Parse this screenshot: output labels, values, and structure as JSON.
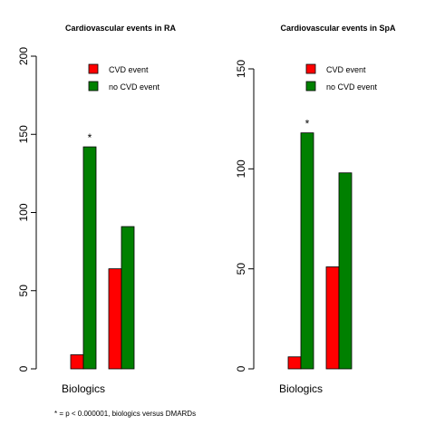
{
  "chart_data": [
    {
      "type": "bar",
      "title": "Cardiovascular events in RA",
      "categories": [
        "Biologics",
        ""
      ],
      "series": [
        {
          "name": "CVD event",
          "color": "#ff0000",
          "values": [
            9,
            64
          ]
        },
        {
          "name": "no CVD event",
          "color": "#008000",
          "values": [
            142,
            91
          ]
        }
      ],
      "annotations": [
        {
          "text": "*",
          "category": 0,
          "series": 1
        }
      ],
      "ylim": [
        0,
        200
      ],
      "yticks": [
        0,
        50,
        100,
        150,
        200
      ],
      "legend": "top-right",
      "grid": false
    },
    {
      "type": "bar",
      "title": "Cardiovascular events in SpA",
      "categories": [
        "Biologics",
        ""
      ],
      "series": [
        {
          "name": "CVD event",
          "color": "#ff0000",
          "values": [
            6,
            51
          ]
        },
        {
          "name": "no CVD event",
          "color": "#008000",
          "values": [
            118,
            98
          ]
        }
      ],
      "annotations": [
        {
          "text": "*",
          "category": 0,
          "series": 1
        }
      ],
      "ylim": [
        0,
        150
      ],
      "yticks": [
        0,
        50,
        100,
        150
      ],
      "legend": "top-right",
      "grid": false
    }
  ],
  "footnote": "* = p < 0.000001, biologics versus DMARDs"
}
